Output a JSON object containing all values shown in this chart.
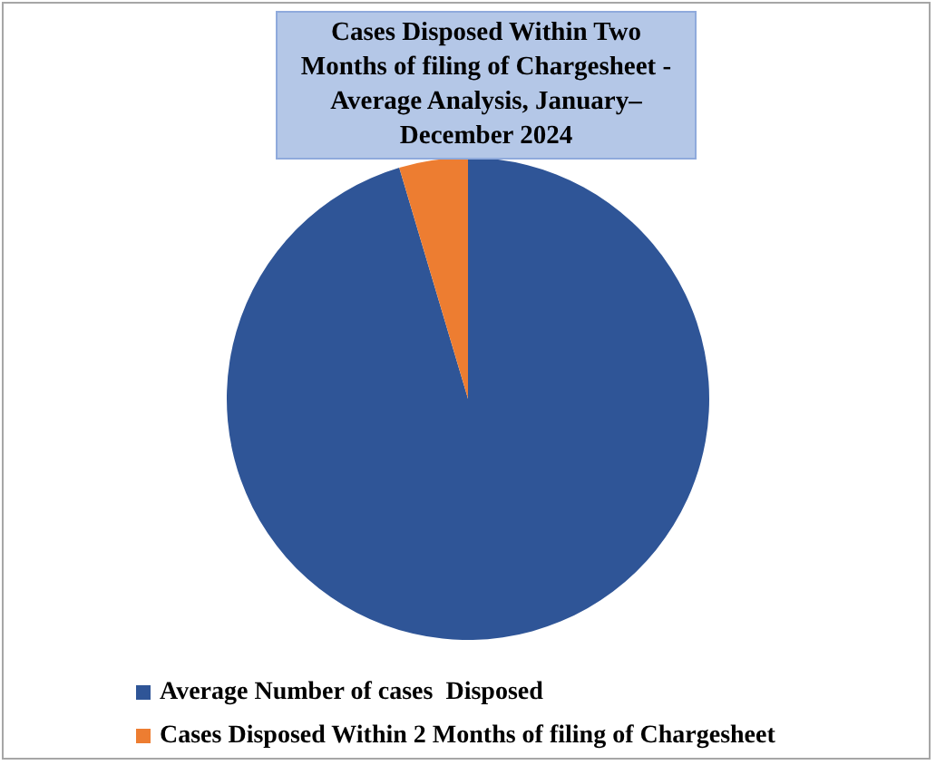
{
  "chart_data": {
    "type": "pie",
    "title": "Cases Disposed Within Two Months of filing of Chargesheet - Average Analysis, January–December 2024",
    "categories": [
      "Average Number of cases  Disposed",
      "Cases Disposed Within 2 Months of filing of Chargesheet"
    ],
    "values": [
      95.4,
      4.6
    ],
    "colors": [
      "#2f5597",
      "#ed7d31"
    ],
    "legend": "bottom"
  }
}
